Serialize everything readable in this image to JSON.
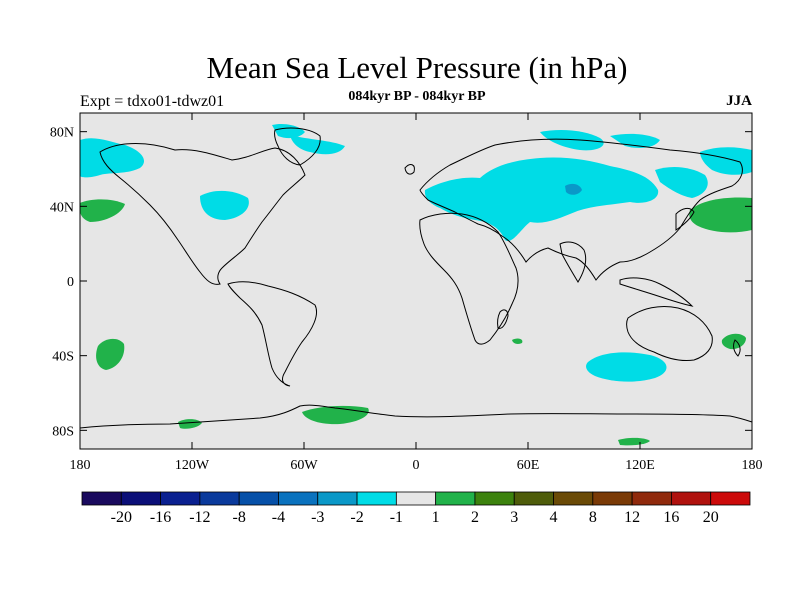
{
  "title": "Mean Sea Level Pressure (in hPa)",
  "subtitle": "084kyr BP - 084kyr BP",
  "left_label": "Expt = tdxo01-tdwz01",
  "right_label": "JJA",
  "axes": {
    "y_ticks": [
      {
        "lat": 80,
        "label": "80N"
      },
      {
        "lat": 40,
        "label": "40N"
      },
      {
        "lat": 0,
        "label": "0"
      },
      {
        "lat": -40,
        "label": "40S"
      },
      {
        "lat": -80,
        "label": "80S"
      }
    ],
    "x_ticks": [
      {
        "lon": -180,
        "label": "180"
      },
      {
        "lon": -120,
        "label": "120W"
      },
      {
        "lon": -60,
        "label": "60W"
      },
      {
        "lon": 0,
        "label": "0"
      },
      {
        "lon": 60,
        "label": "60E"
      },
      {
        "lon": 120,
        "label": "120E"
      },
      {
        "lon": 180,
        "label": "180"
      }
    ]
  },
  "colorbar": {
    "colors": [
      "#1a0a5e",
      "#0b0f78",
      "#0a2090",
      "#0a3a9c",
      "#0650a8",
      "#0a72be",
      "#0a98c8",
      "#00dce6",
      "#e6e6e6",
      "#21b24a",
      "#3c820e",
      "#4e5c0a",
      "#6a4a06",
      "#7a3a06",
      "#902a0c",
      "#b0120e",
      "#cc0a0a"
    ],
    "labels": [
      "-20",
      "-16",
      "-12",
      "-8",
      "-4",
      "-3",
      "-2",
      "-1",
      "1",
      "2",
      "3",
      "4",
      "8",
      "12",
      "16",
      "20"
    ]
  },
  "colors": {
    "background": "#e6e6e6",
    "negative_1": "#00dce6",
    "negative_2": "#0a98c8",
    "positive_1": "#21b24a"
  }
}
